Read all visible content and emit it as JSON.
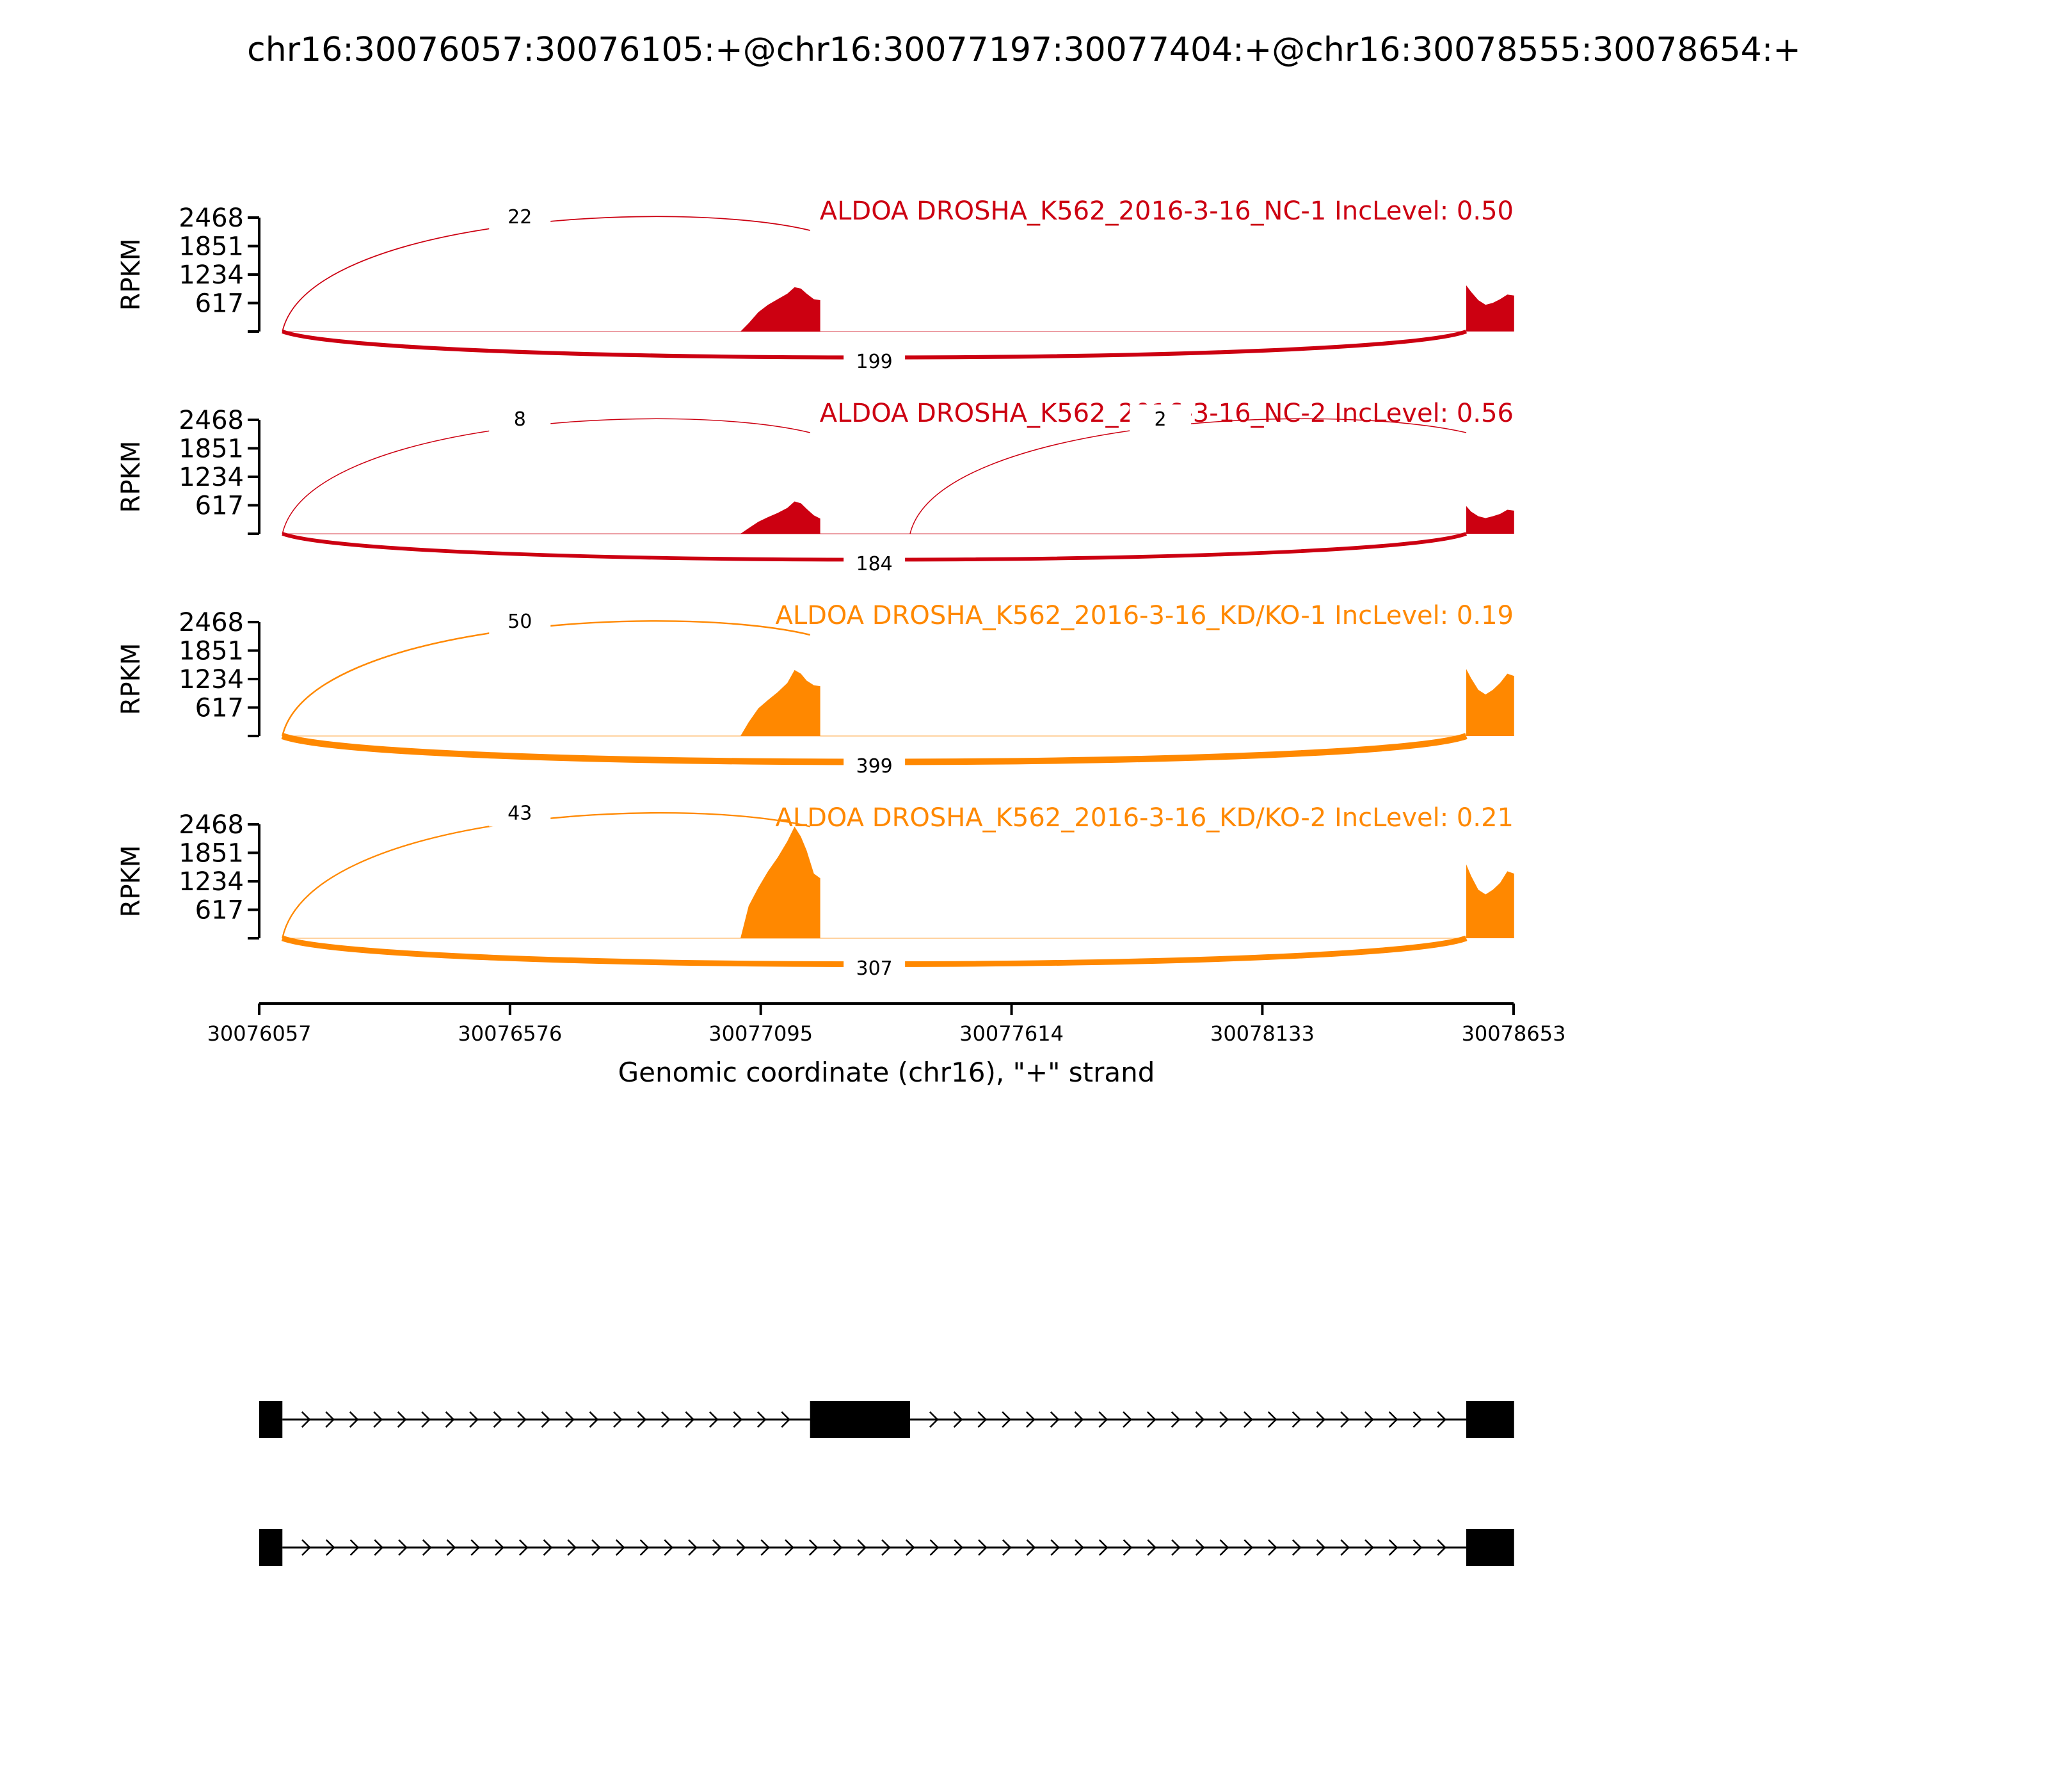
{
  "title": "chr16:30076057:30076105:+@chr16:30077197:30077404:+@chr16:30078555:30078654:+",
  "chart_data": {
    "type": "area",
    "title": "chr16:30076057:30076105:+@chr16:30077197:30077404:+@chr16:30078555:30078654:+",
    "xlabel": "Genomic coordinate (chr16), \"+\" strand",
    "ylabel": "RPKM",
    "xlim": [
      30076057,
      30078653
    ],
    "x_ticks": [
      "30076057",
      "30076576",
      "30077095",
      "30077614",
      "30078133",
      "30078653"
    ],
    "ylim": [
      0,
      2468
    ],
    "y_ticks": [
      "617",
      "1234",
      "1851",
      "2468"
    ],
    "grid": false,
    "series": [
      {
        "name": "ALDOA DROSHA_K562_2016-3-16_NC-1 IncLevel: 0.50",
        "color": "#cc0011",
        "coverage": [
          {
            "x": [
              30077053,
              30077070,
              30077090,
              30077110,
              30077130,
              30077150,
              30077165,
              30077178,
              30077190,
              30077205,
              30077218
            ],
            "y": [
              0,
              180,
              420,
              580,
              700,
              820,
              960,
              930,
              820,
              700,
              680
            ]
          },
          {
            "x": [
              30078555,
              30078565,
              30078580,
              30078595,
              30078610,
              30078625,
              30078640,
              30078654
            ],
            "y": [
              1000,
              860,
              680,
              580,
              620,
              700,
              800,
              780
            ]
          }
        ],
        "junctions": [
          {
            "label": "22",
            "from": 30076105,
            "to": 30077197,
            "side": "above"
          },
          {
            "label": "199",
            "from": 30076105,
            "to": 30078555,
            "side": "below"
          }
        ]
      },
      {
        "name": "ALDOA DROSHA_K562_2016-3-16_NC-2 IncLevel: 0.56",
        "color": "#cc0011",
        "coverage": [
          {
            "x": [
              30077053,
              30077070,
              30077090,
              30077110,
              30077130,
              30077150,
              30077165,
              30077178,
              30077190,
              30077205,
              30077218
            ],
            "y": [
              0,
              120,
              260,
              360,
              450,
              560,
              700,
              660,
              540,
              400,
              330
            ]
          },
          {
            "x": [
              30078555,
              30078565,
              30078580,
              30078595,
              30078610,
              30078625,
              30078640,
              30078654
            ],
            "y": [
              600,
              480,
              380,
              340,
              380,
              430,
              520,
              500
            ]
          }
        ],
        "junctions": [
          {
            "label": "8",
            "from": 30076105,
            "to": 30077197,
            "side": "above"
          },
          {
            "label": "2",
            "from": 30077404,
            "to": 30078555,
            "side": "above"
          },
          {
            "label": "184",
            "from": 30076105,
            "to": 30078555,
            "side": "below"
          }
        ]
      },
      {
        "name": "ALDOA DROSHA_K562_2016-3-16_KD/KO-1 IncLevel: 0.19",
        "color": "#ff8800",
        "coverage": [
          {
            "x": [
              30077053,
              30077070,
              30077090,
              30077110,
              30077130,
              30077150,
              30077165,
              30077178,
              30077190,
              30077205,
              30077218
            ],
            "y": [
              0,
              300,
              600,
              780,
              950,
              1150,
              1430,
              1350,
              1200,
              1100,
              1080
            ]
          },
          {
            "x": [
              30078555,
              30078565,
              30078580,
              30078595,
              30078610,
              30078625,
              30078640,
              30078654
            ],
            "y": [
              1450,
              1250,
              1000,
              900,
              1000,
              1150,
              1350,
              1300
            ]
          }
        ],
        "junctions": [
          {
            "label": "50",
            "from": 30076105,
            "to": 30077197,
            "side": "above"
          },
          {
            "label": "399",
            "from": 30076105,
            "to": 30078555,
            "side": "below"
          }
        ]
      },
      {
        "name": "ALDOA DROSHA_K562_2016-3-16_KD/KO-2 IncLevel: 0.21",
        "color": "#ff8800",
        "coverage": [
          {
            "x": [
              30077053,
              30077070,
              30077090,
              30077110,
              30077130,
              30077150,
              30077165,
              30077178,
              30077190,
              30077205,
              30077218
            ],
            "y": [
              0,
              700,
              1100,
              1450,
              1750,
              2100,
              2420,
              2200,
              1900,
              1400,
              1300
            ]
          },
          {
            "x": [
              30078555,
              30078565,
              30078580,
              30078595,
              30078610,
              30078625,
              30078640,
              30078654
            ],
            "y": [
              1600,
              1350,
              1050,
              950,
              1050,
              1200,
              1450,
              1400
            ]
          }
        ],
        "junctions": [
          {
            "label": "43",
            "from": 30076105,
            "to": 30077197,
            "side": "above"
          },
          {
            "label": "307",
            "from": 30076105,
            "to": 30078555,
            "side": "below"
          }
        ]
      }
    ],
    "transcripts": [
      {
        "exons": [
          [
            30076057,
            30076105
          ],
          [
            30077197,
            30077404
          ],
          [
            30078555,
            30078654
          ]
        ],
        "strand": "+"
      },
      {
        "exons": [
          [
            30076057,
            30076105
          ],
          [
            30078555,
            30078654
          ]
        ],
        "strand": "+"
      }
    ]
  }
}
